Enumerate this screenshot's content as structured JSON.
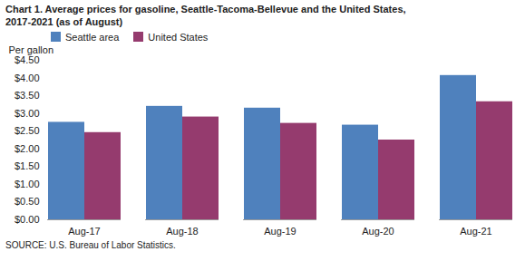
{
  "chart_data": {
    "type": "bar",
    "title": "Chart 1. Average prices for gasoline, Seattle-Tacoma-Bellevue and the United States,",
    "subtitle": "2017-2021  (as of August)",
    "ylabel": "Per gallon",
    "source": "SOURCE: U.S. Bureau of Labor Statistics.",
    "categories": [
      "Aug-17",
      "Aug-18",
      "Aug-19",
      "Aug-20",
      "Aug-21"
    ],
    "series": [
      {
        "name": "Seattle area",
        "color": "#4F81BD",
        "values": [
          2.75,
          3.2,
          3.15,
          2.67,
          4.07
        ]
      },
      {
        "name": "United States",
        "color": "#953B6E",
        "values": [
          2.46,
          2.9,
          2.72,
          2.25,
          3.33
        ]
      }
    ],
    "ylim": [
      0,
      4.5
    ],
    "yticks": [
      {
        "value": 0.0,
        "label": "$0.00"
      },
      {
        "value": 0.5,
        "label": "$0.50"
      },
      {
        "value": 1.0,
        "label": "$1.00"
      },
      {
        "value": 1.5,
        "label": "$1.50"
      },
      {
        "value": 2.0,
        "label": "$2.00"
      },
      {
        "value": 2.5,
        "label": "$2.50"
      },
      {
        "value": 3.0,
        "label": "$3.00"
      },
      {
        "value": 3.5,
        "label": "$3.50"
      },
      {
        "value": 4.0,
        "label": "$4.00"
      },
      {
        "value": 4.5,
        "label": "$4.50"
      }
    ],
    "grid": false,
    "legend": "upper left"
  }
}
